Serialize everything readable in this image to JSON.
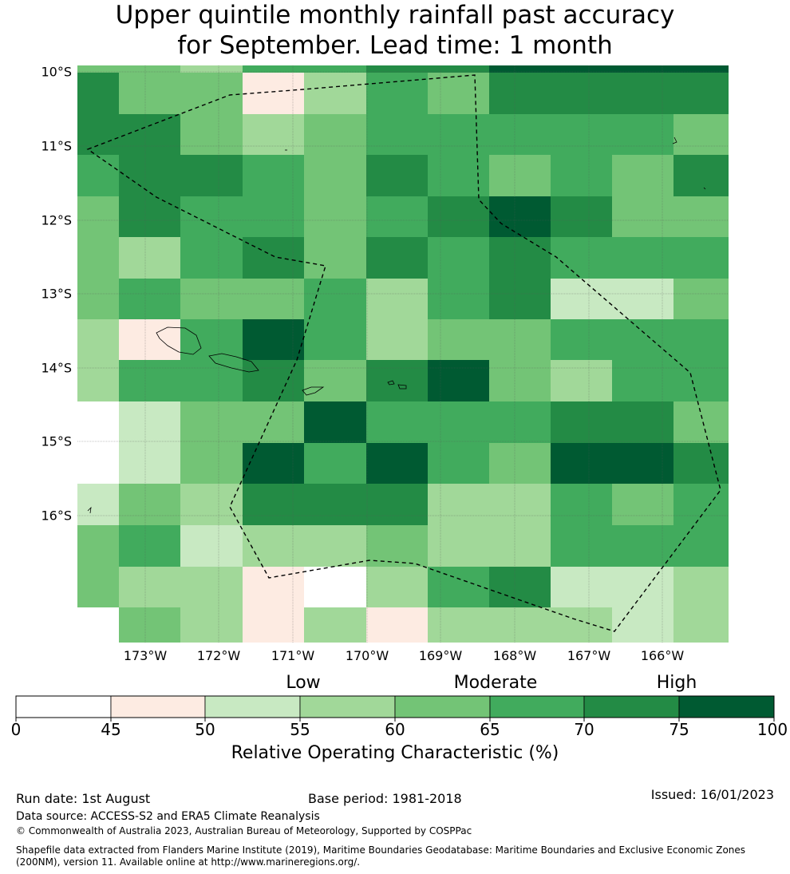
{
  "title": {
    "line1": "Upper quintile monthly rainfall past accuracy",
    "line2": "for September. Lead time: 1 month"
  },
  "map": {
    "lat_labels": [
      "10°S",
      "11°S",
      "12°S",
      "13°S",
      "14°S",
      "15°S",
      "16°S"
    ],
    "lon_labels": [
      "173°W",
      "172°W",
      "171°W",
      "170°W",
      "169°W",
      "168°W",
      "167°W",
      "166°W"
    ],
    "grid_values": [
      [
        60,
        60,
        55,
        65,
        65,
        70,
        75,
        80,
        75,
        75
      ],
      [
        70,
        60,
        60,
        48,
        57,
        65,
        60,
        70,
        70,
        72,
        72
      ],
      [
        72,
        72,
        62,
        57,
        62,
        65,
        65,
        65,
        65,
        65,
        62
      ],
      [
        68,
        72,
        72,
        65,
        62,
        72,
        65,
        60,
        65,
        62,
        72
      ],
      [
        62,
        73,
        65,
        65,
        62,
        65,
        72,
        78,
        72,
        62,
        62
      ],
      [
        62,
        57,
        65,
        72,
        62,
        72,
        65,
        73,
        65,
        65,
        65
      ],
      [
        62,
        65,
        62,
        62,
        65,
        57,
        65,
        73,
        52,
        52,
        62
      ],
      [
        57,
        48,
        65,
        78,
        65,
        57,
        60,
        60,
        65,
        65,
        65
      ],
      [
        57,
        65,
        65,
        73,
        62,
        73,
        78,
        62,
        57,
        65,
        65
      ],
      [
        null,
        53,
        62,
        62,
        78,
        65,
        65,
        65,
        73,
        73,
        62
      ],
      [
        null,
        53,
        62,
        78,
        65,
        78,
        65,
        62,
        78,
        78,
        72
      ],
      [
        53,
        62,
        57,
        72,
        72,
        72,
        57,
        57,
        65,
        62,
        65
      ],
      [
        62,
        65,
        53,
        57,
        57,
        62,
        57,
        57,
        65,
        65,
        65
      ],
      [
        62,
        57,
        57,
        48,
        40,
        57,
        65,
        72,
        53,
        53,
        57
      ],
      [
        null,
        62,
        57,
        48,
        57,
        48,
        57,
        57,
        57,
        53,
        57
      ]
    ]
  },
  "legend": {
    "categories": [
      "Low",
      "Moderate",
      "High"
    ],
    "ticks": [
      "0",
      "45",
      "50",
      "55",
      "60",
      "65",
      "70",
      "75",
      "100"
    ],
    "colors": [
      "#ffffff",
      "#fdebe2",
      "#c8e9c2",
      "#a1d899",
      "#73c476",
      "#41ab5d",
      "#238b45",
      "#005a32"
    ],
    "title": "Relative Operating Characteristic (%)"
  },
  "footer": {
    "run_date": "Run date: 1st August",
    "base_period": "Base period: 1981-2018",
    "issued": "Issued: 16/01/2023",
    "data_source": "Data source: ACCESS-S2 and ERA5 Climate Reanalysis",
    "copyright": "© Commonwealth of Australia 2023, Australian Bureau of Meteorology, Supported by COSPPac",
    "shapefile_line1": "Shapefile data extracted from Flanders Marine Institute (2019), Maritime Boundaries Geodatabase: Maritime Boundaries and Exclusive Economic Zones",
    "shapefile_line2": "(200NM), version 11. Available online at http://www.marineregions.org/."
  }
}
